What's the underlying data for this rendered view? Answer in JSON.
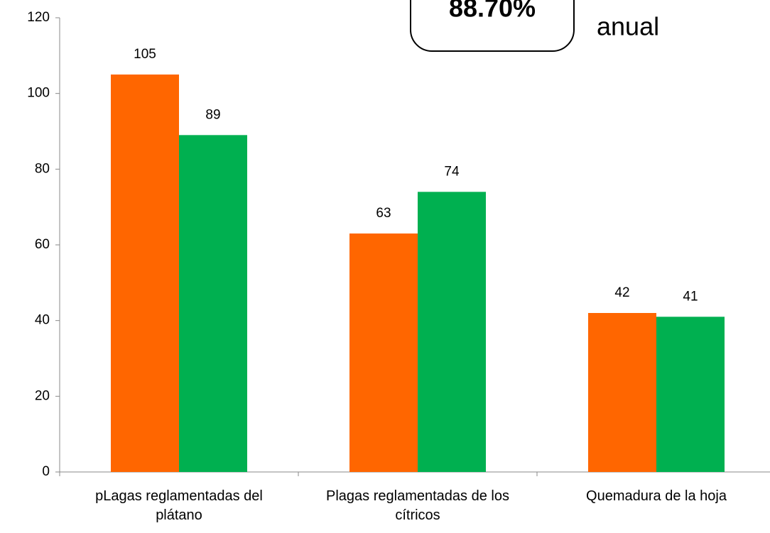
{
  "chart_data": {
    "type": "bar",
    "categories": [
      "pLagas reglamentadas del plátano",
      "Plagas reglamentadas de los cítricos",
      "Quemadura de la hoja"
    ],
    "series": [
      {
        "color": "#ff6600",
        "values": [
          105,
          63,
          42
        ]
      },
      {
        "color": "#00b050",
        "values": [
          89,
          74,
          41
        ]
      }
    ],
    "ylim": [
      0,
      120
    ],
    "yticks": [
      0,
      20,
      40,
      60,
      80,
      100,
      120
    ],
    "grid": false,
    "annotations": [
      "88.70%",
      "anual"
    ]
  }
}
